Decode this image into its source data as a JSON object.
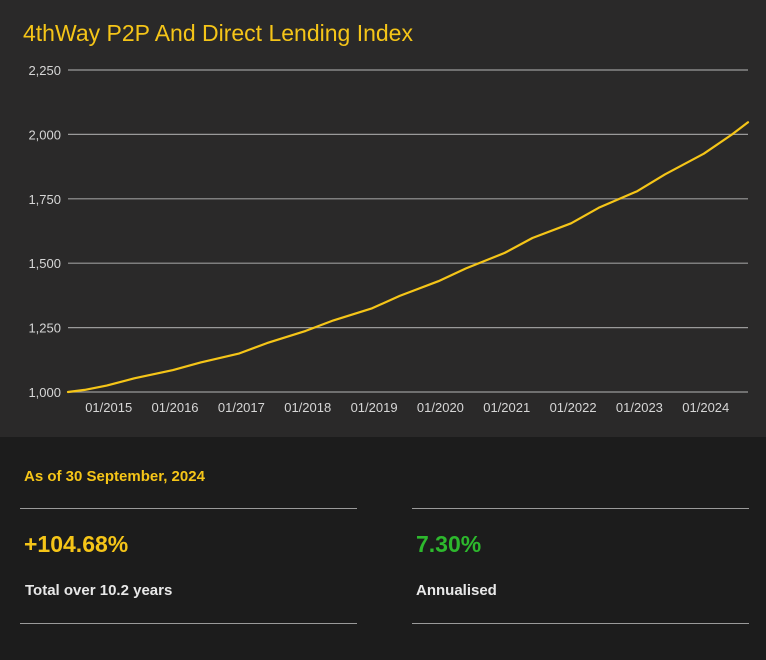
{
  "colors": {
    "line": "#f5c518",
    "title": "#f5c518",
    "positive": "#2db82d",
    "axis_text": "#d6d6d6",
    "grid": "#9a9a9a"
  },
  "chart_data": {
    "type": "line",
    "title": "4thWay P2P And Direct Lending Index",
    "xlabel": "",
    "ylabel": "",
    "ylim": [
      1000,
      2250
    ],
    "yticks": [
      1000,
      1250,
      1500,
      1750,
      2000,
      2250
    ],
    "ytick_labels": [
      "1,000",
      "1,250",
      "1,500",
      "1,750",
      "2,000",
      "2,250"
    ],
    "xlim": [
      "2014-06",
      "2024-09"
    ],
    "xticks": [
      "2015-01",
      "2016-01",
      "2017-01",
      "2018-01",
      "2019-01",
      "2020-01",
      "2021-01",
      "2022-01",
      "2023-01",
      "2024-01"
    ],
    "xtick_labels": [
      "01/2015",
      "01/2016",
      "01/2017",
      "01/2018",
      "01/2019",
      "01/2020",
      "01/2021",
      "01/2022",
      "01/2023",
      "01/2024"
    ],
    "grid": true,
    "series": [
      {
        "x": [
          "2014-06",
          "2014-09",
          "2015-01",
          "2015-06",
          "2016-01",
          "2016-06",
          "2017-01",
          "2017-06",
          "2018-01",
          "2018-06",
          "2019-01",
          "2019-06",
          "2020-01",
          "2020-06",
          "2021-01",
          "2021-06",
          "2022-01",
          "2022-06",
          "2023-01",
          "2023-06",
          "2024-01",
          "2024-06",
          "2024-09"
        ],
        "values": [
          1000,
          1008,
          1025,
          1053,
          1085,
          1115,
          1150,
          1190,
          1237,
          1278,
          1325,
          1373,
          1430,
          1480,
          1540,
          1598,
          1655,
          1715,
          1780,
          1845,
          1925,
          1998,
          2047
        ]
      }
    ]
  },
  "stats": {
    "as_of": "As of 30 September, 2024",
    "total_value": "+104.68%",
    "total_label": "Total over 10.2 years",
    "annual_value": "7.30%",
    "annual_label": "Annualised"
  }
}
